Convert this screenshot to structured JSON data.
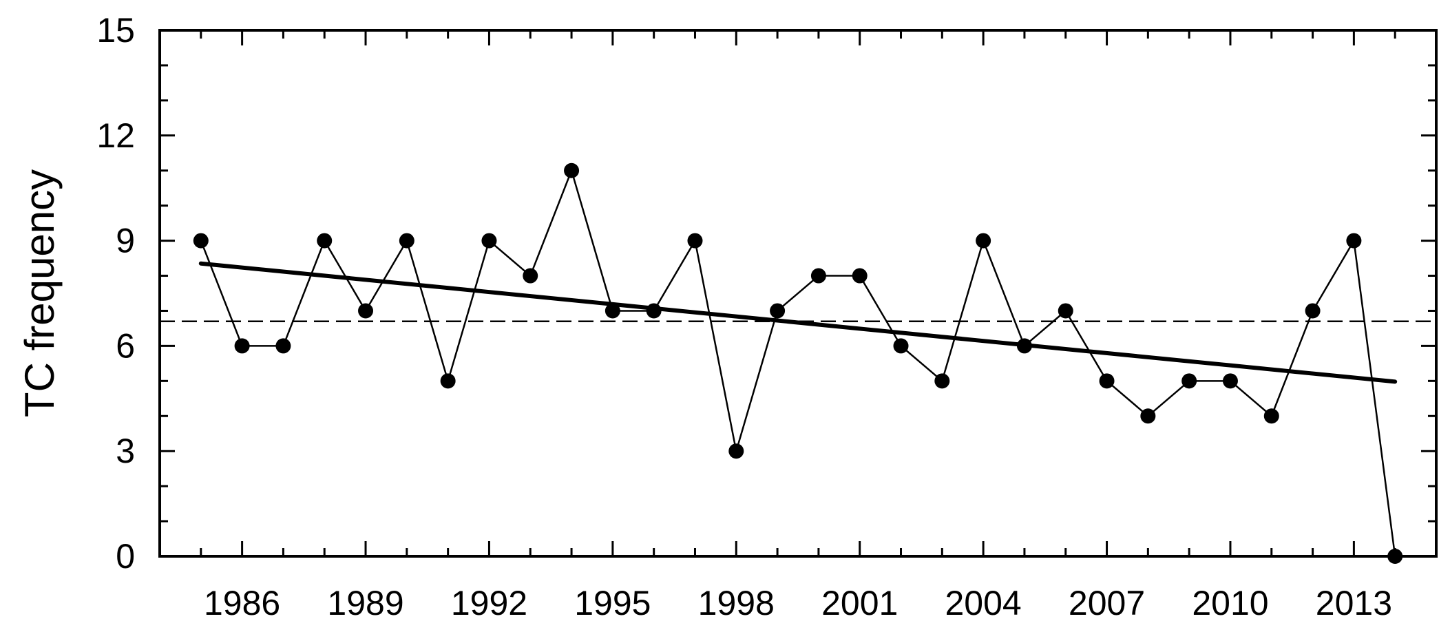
{
  "chart_data": {
    "type": "line",
    "title": "",
    "xlabel": "",
    "ylabel": "TC frequency",
    "xlim": [
      1984,
      2015
    ],
    "ylim": [
      0,
      15
    ],
    "x_ticks": [
      1986,
      1989,
      1992,
      1995,
      1998,
      2001,
      2004,
      2007,
      2010,
      2013
    ],
    "y_ticks": [
      0,
      3,
      6,
      9,
      12,
      15
    ],
    "grid": false,
    "legend": "none",
    "series": [
      {
        "style": "solid-line-with-filled-circle-markers",
        "x": [
          1985,
          1986,
          1987,
          1988,
          1989,
          1990,
          1991,
          1992,
          1993,
          1994,
          1995,
          1996,
          1997,
          1998,
          1999,
          2000,
          2001,
          2002,
          2003,
          2004,
          2005,
          2006,
          2007,
          2008,
          2009,
          2010,
          2011,
          2012,
          2013,
          2014
        ],
        "values": [
          9,
          6,
          6,
          9,
          7,
          9,
          5,
          9,
          8,
          11,
          7,
          7,
          9,
          3,
          7,
          8,
          8,
          6,
          5,
          9,
          6,
          7,
          5,
          4,
          5,
          5,
          4,
          7,
          9,
          0
        ]
      }
    ],
    "trend_line": {
      "style": "thick-solid",
      "x": [
        1985,
        2014
      ],
      "y": [
        8.35,
        4.98
      ]
    },
    "mean_line": {
      "style": "dashed",
      "y": 6.7,
      "x": [
        1984,
        2015
      ]
    },
    "colors": {
      "line": "#000000",
      "marker": "#000000",
      "background": "#ffffff"
    }
  }
}
